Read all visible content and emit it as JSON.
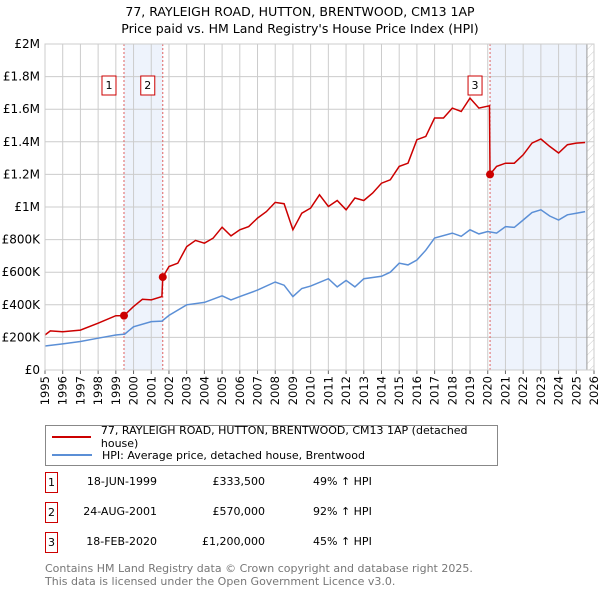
{
  "chart_data": {
    "type": "line",
    "title": "77, RAYLEIGH ROAD, HUTTON, BRENTWOOD, CM13 1AP",
    "subtitle": "Price paid vs. HM Land Registry's House Price Index (HPI)",
    "xlim": [
      1995,
      2026
    ],
    "ylim": [
      0,
      2000000
    ],
    "x_ticks": [
      "1995",
      "1996",
      "1997",
      "1998",
      "1999",
      "2000",
      "2001",
      "2002",
      "2003",
      "2004",
      "2005",
      "2006",
      "2007",
      "2008",
      "2009",
      "2010",
      "2011",
      "2012",
      "2013",
      "2014",
      "2015",
      "2016",
      "2017",
      "2018",
      "2019",
      "2020",
      "2021",
      "2022",
      "2023",
      "2024",
      "2025",
      "2026"
    ],
    "y_ticks": [
      {
        "v": 0,
        "label": "£0"
      },
      {
        "v": 200000,
        "label": "£200K"
      },
      {
        "v": 400000,
        "label": "£400K"
      },
      {
        "v": 600000,
        "label": "£600K"
      },
      {
        "v": 800000,
        "label": "£800K"
      },
      {
        "v": 1000000,
        "label": "£1M"
      },
      {
        "v": 1200000,
        "label": "£1.2M"
      },
      {
        "v": 1400000,
        "label": "£1.4M"
      },
      {
        "v": 1600000,
        "label": "£1.6M"
      },
      {
        "v": 1800000,
        "label": "£1.8M"
      },
      {
        "v": 2000000,
        "label": "£2M"
      }
    ],
    "grid": true,
    "shaded_ranges": [
      [
        1999.46,
        2001.65
      ],
      [
        2020.13,
        2025.6
      ]
    ],
    "hatched_after": 2025.6,
    "series": [
      {
        "name": "77, RAYLEIGH ROAD, HUTTON, BRENTWOOD, CM13 1AP (detached house)",
        "color": "#cc0000",
        "x": [
          1995,
          1995.3,
          1996,
          1997,
          1998,
          1999,
          1999.46,
          2000,
          2000.5,
          2001,
          2001.6,
          2001.65,
          2002,
          2002.5,
          2003,
          2003.5,
          2004,
          2004.5,
          2005,
          2005.5,
          2006,
          2006.5,
          2007,
          2007.5,
          2008,
          2008.5,
          2009,
          2009.5,
          2010,
          2010.5,
          2011,
          2011.5,
          2012,
          2012.5,
          2013,
          2013.5,
          2014,
          2014.5,
          2015,
          2015.5,
          2016,
          2016.5,
          2017,
          2017.5,
          2018,
          2018.5,
          2019,
          2019.5,
          2020.1,
          2020.13,
          2020.5,
          2021,
          2021.5,
          2022,
          2022.5,
          2023,
          2023.5,
          2024,
          2024.5,
          2025,
          2025.5
        ],
        "y": [
          215000,
          240000,
          235000,
          245000,
          287000,
          333000,
          333500,
          389000,
          434000,
          430000,
          450000,
          570000,
          635000,
          655000,
          757000,
          795000,
          778000,
          809000,
          876000,
          823000,
          860000,
          880000,
          932000,
          972000,
          1028000,
          1020000,
          860000,
          962000,
          993000,
          1075000,
          1003000,
          1040000,
          983000,
          1055000,
          1040000,
          1085000,
          1146000,
          1167000,
          1249000,
          1269000,
          1413000,
          1433000,
          1546000,
          1546000,
          1607000,
          1586000,
          1668000,
          1607000,
          1621000,
          1200000,
          1249000,
          1269000,
          1269000,
          1320000,
          1392000,
          1417000,
          1372000,
          1331000,
          1382000,
          1392000,
          1396000
        ]
      },
      {
        "name": "HPI: Average price, detached house, Brentwood",
        "color": "#5b8fd6",
        "x": [
          1995,
          1996,
          1997,
          1998,
          1999,
          1999.5,
          2000,
          2001,
          2001.6,
          2002,
          2003,
          2004,
          2005,
          2005.5,
          2006,
          2007,
          2008,
          2008.5,
          2009,
          2009.5,
          2010,
          2011,
          2011.5,
          2012,
          2012.5,
          2013,
          2014,
          2014.5,
          2015,
          2015.5,
          2016,
          2016.5,
          2017,
          2018,
          2018.5,
          2019,
          2019.5,
          2020,
          2020.5,
          2021,
          2021.5,
          2022,
          2022.5,
          2023,
          2023.5,
          2024,
          2024.5,
          2025,
          2025.5
        ],
        "y": [
          147000,
          160000,
          175000,
          195000,
          215000,
          220000,
          265000,
          297000,
          300000,
          335000,
          400000,
          415000,
          455000,
          430000,
          450000,
          490000,
          540000,
          520000,
          450000,
          500000,
          515000,
          560000,
          510000,
          550000,
          510000,
          560000,
          575000,
          600000,
          655000,
          645000,
          675000,
          735000,
          810000,
          840000,
          820000,
          860000,
          835000,
          850000,
          840000,
          880000,
          875000,
          920000,
          966000,
          983000,
          945000,
          920000,
          952000,
          962000,
          972000
        ]
      }
    ],
    "sales": [
      {
        "n": "1",
        "x": 1999.46,
        "y": 333500
      },
      {
        "n": "2",
        "x": 2001.65,
        "y": 570000
      },
      {
        "n": "3",
        "x": 2020.13,
        "y": 1200000
      }
    ]
  },
  "legend": {
    "property": "77, RAYLEIGH ROAD, HUTTON, BRENTWOOD, CM13 1AP (detached house)",
    "hpi": "HPI: Average price, detached house, Brentwood"
  },
  "transactions": [
    {
      "n": "1",
      "date": "18-JUN-1999",
      "price": "£333,500",
      "hpi": "49% ↑ HPI"
    },
    {
      "n": "2",
      "date": "24-AUG-2001",
      "price": "£570,000",
      "hpi": "92% ↑ HPI"
    },
    {
      "n": "3",
      "date": "18-FEB-2020",
      "price": "£1,200,000",
      "hpi": "45% ↑ HPI"
    }
  ],
  "footer": {
    "line1": "Contains HM Land Registry data © Crown copyright and database right 2025.",
    "line2": "This data is licensed under the Open Government Licence v3.0."
  }
}
